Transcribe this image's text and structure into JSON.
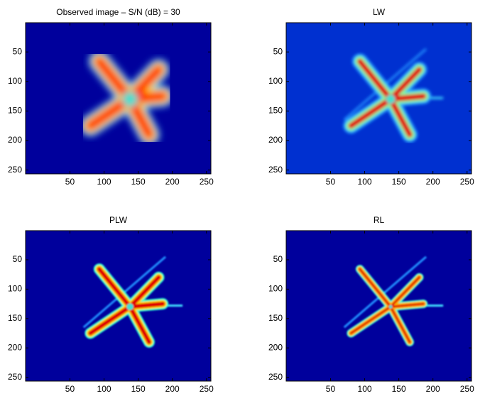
{
  "chart_data": [
    {
      "type": "image",
      "title": "Observed image – S/N (dB) = 30",
      "xlim": [
        -15,
        256.5
      ],
      "ylim": [
        256.5,
        0.5
      ],
      "xticks": [
        50,
        100,
        150,
        200,
        250
      ],
      "yticks": [
        50,
        100,
        150,
        200,
        250
      ]
    },
    {
      "type": "image",
      "title": "LW",
      "xlim": [
        -15,
        256.5
      ],
      "ylim": [
        256.5,
        0.5
      ],
      "xticks": [
        50,
        100,
        150,
        200,
        250
      ],
      "yticks": [
        50,
        100,
        150,
        200,
        250
      ]
    },
    {
      "type": "image",
      "title": "PLW",
      "xlim": [
        -15,
        256.5
      ],
      "ylim": [
        256.5,
        0.5
      ],
      "xticks": [
        50,
        100,
        150,
        200,
        250
      ],
      "yticks": [
        50,
        100,
        150,
        200,
        250
      ]
    },
    {
      "type": "image",
      "title": "RL",
      "xlim": [
        -15,
        256.5
      ],
      "ylim": [
        256.5,
        0.5
      ],
      "xticks": [
        50,
        100,
        150,
        200,
        250
      ],
      "yticks": [
        50,
        100,
        150,
        200,
        250
      ]
    }
  ]
}
